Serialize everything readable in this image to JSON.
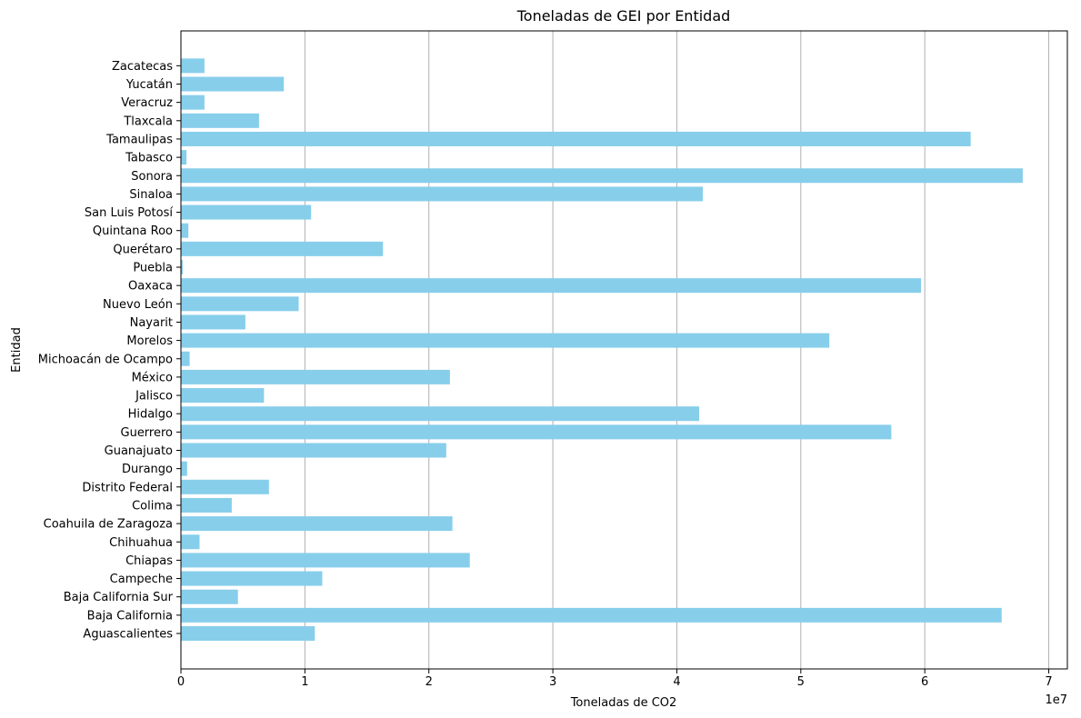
{
  "chart_data": {
    "type": "bar",
    "orientation": "horizontal",
    "title": "Toneladas de GEI por Entidad",
    "xlabel": "Toneladas de CO2",
    "ylabel": "Entidad",
    "x_offset_label": "1e7",
    "xlim": [
      0,
      71500000
    ],
    "xticks": [
      0,
      10000000,
      20000000,
      30000000,
      40000000,
      50000000,
      60000000,
      70000000
    ],
    "xtick_labels": [
      "0",
      "1",
      "2",
      "3",
      "4",
      "5",
      "6",
      "7"
    ],
    "grid": "vertical lines at x ticks",
    "bar_color": "#87ceeb",
    "categories": [
      "Aguascalientes",
      "Baja California",
      "Baja California Sur",
      "Campeche",
      "Chiapas",
      "Chihuahua",
      "Coahuila de Zaragoza",
      "Colima",
      "Distrito Federal",
      "Durango",
      "Guanajuato",
      "Guerrero",
      "Hidalgo",
      "Jalisco",
      "México",
      "Michoacán de Ocampo",
      "Morelos",
      "Nayarit",
      "Nuevo León",
      "Oaxaca",
      "Puebla",
      "Querétaro",
      "Quintana Roo",
      "San Luis Potosí",
      "Sinaloa",
      "Sonora",
      "Tabasco",
      "Tamaulipas",
      "Tlaxcala",
      "Veracruz",
      "Yucatán",
      "Zacatecas"
    ],
    "values": [
      10800000,
      66200000,
      4600000,
      11400000,
      23300000,
      1500000,
      21900000,
      4100000,
      7100000,
      500000,
      21400000,
      57300000,
      41800000,
      6700000,
      21700000,
      700000,
      52300000,
      5200000,
      9500000,
      59700000,
      150000,
      16300000,
      600000,
      10500000,
      42100000,
      67900000,
      450000,
      63700000,
      6300000,
      1900000,
      8300000,
      1900000
    ]
  }
}
